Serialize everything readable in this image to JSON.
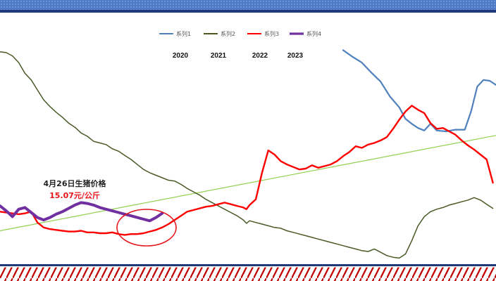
{
  "chart_data": {
    "type": "line",
    "title": "",
    "xlabel": "",
    "ylabel": "",
    "grid": false,
    "legend_position": "top-center",
    "x_scale": "weeks",
    "x_range": [
      0,
      159
    ],
    "y_range": [
      11,
      40
    ],
    "years": [
      "2020",
      "2021",
      "2022",
      "2023"
    ],
    "series": [
      {
        "name": "系列1",
        "color": "#4f81bd",
        "x": [
          110,
          113,
          116,
          119,
          122,
          125,
          128,
          130,
          132,
          134,
          136,
          138,
          140,
          143,
          146,
          149,
          151,
          153,
          155,
          157,
          159
        ],
        "values": [
          37.0,
          36.2,
          35.5,
          34.3,
          33.2,
          31.4,
          30.1,
          28.7,
          28.1,
          27.6,
          27.3,
          28.1,
          27.3,
          27.2,
          27.4,
          27.4,
          29.6,
          32.6,
          33.4,
          33.3,
          32.8
        ]
      },
      {
        "name": "系列2",
        "color": "#4a5a25",
        "x": [
          0,
          2,
          4,
          6,
          8,
          10,
          12,
          14,
          16,
          18,
          20,
          22,
          24,
          26,
          28,
          30,
          32,
          34,
          36,
          38,
          40,
          42,
          44,
          46,
          48,
          50,
          52,
          54,
          56,
          58,
          60,
          62,
          64,
          66,
          68,
          70,
          72,
          74,
          76,
          78,
          79,
          80,
          82,
          84,
          86,
          88,
          90,
          92,
          94,
          96,
          98,
          100,
          102,
          104,
          106,
          108,
          110,
          112,
          114,
          116,
          118,
          120,
          122,
          124,
          126,
          128,
          130,
          132,
          134,
          136,
          138,
          140,
          142,
          144,
          146,
          148,
          150,
          152,
          154,
          156,
          158
        ],
        "values": [
          36.8,
          36.7,
          36.3,
          35.5,
          34.2,
          33.4,
          32.2,
          31.0,
          30.2,
          29.5,
          28.9,
          28.2,
          27.7,
          27.0,
          26.6,
          26.0,
          25.8,
          25.6,
          25.1,
          24.8,
          24.3,
          23.8,
          23.2,
          22.6,
          22.2,
          21.9,
          21.6,
          21.3,
          21.2,
          20.8,
          20.3,
          19.9,
          19.5,
          19.0,
          18.6,
          18.2,
          17.8,
          17.4,
          17.0,
          16.5,
          16.1,
          16.4,
          16.2,
          16.0,
          15.8,
          15.6,
          15.5,
          15.2,
          15.0,
          14.8,
          14.6,
          14.4,
          14.2,
          14.0,
          13.8,
          13.6,
          13.4,
          13.2,
          13.0,
          12.8,
          12.7,
          13.0,
          12.6,
          12.2,
          12.0,
          11.9,
          12.4,
          14.0,
          15.8,
          16.9,
          17.5,
          17.8,
          18.0,
          18.3,
          18.5,
          18.7,
          18.9,
          19.2,
          18.9,
          18.4,
          17.9
        ]
      },
      {
        "name": "系列3",
        "color": "#ff0000",
        "x": [
          0,
          2,
          4,
          6,
          8,
          10,
          12,
          14,
          16,
          18,
          20,
          22,
          24,
          26,
          28,
          30,
          32,
          34,
          36,
          38,
          40,
          42,
          44,
          46,
          48,
          50,
          52,
          54,
          56,
          58,
          60,
          62,
          64,
          66,
          68,
          70,
          72,
          74,
          76,
          78,
          79,
          80,
          82,
          84,
          86,
          88,
          90,
          92,
          94,
          96,
          98,
          100,
          102,
          104,
          106,
          108,
          110,
          112,
          114,
          116,
          118,
          120,
          122,
          124,
          126,
          128,
          130,
          132,
          134,
          136,
          138,
          140,
          142,
          144,
          146,
          148,
          150,
          152,
          154,
          156,
          158
        ],
        "values": [
          17.5,
          17.4,
          17.3,
          17.2,
          17.3,
          17.5,
          16.2,
          15.6,
          15.4,
          15.3,
          15.2,
          15.1,
          15.1,
          15.2,
          15.0,
          15.0,
          14.9,
          14.9,
          15.0,
          14.8,
          14.7,
          14.8,
          14.8,
          14.9,
          15.1,
          15.3,
          15.6,
          16.0,
          16.5,
          17.0,
          17.5,
          17.7,
          17.9,
          18.1,
          18.2,
          18.4,
          18.6,
          18.4,
          18.2,
          18.0,
          17.8,
          18.3,
          19.0,
          22.2,
          24.9,
          24.4,
          23.6,
          23.2,
          22.9,
          22.6,
          22.7,
          23.1,
          22.8,
          23.0,
          23.2,
          23.6,
          24.2,
          24.7,
          25.4,
          25.2,
          25.6,
          25.8,
          26.1,
          26.5,
          27.5,
          28.6,
          29.6,
          30.3,
          29.8,
          29.4,
          28.2,
          27.5,
          27.6,
          27.2,
          26.8,
          26.1,
          25.5,
          25.0,
          24.4,
          23.8,
          21.0
        ]
      },
      {
        "name": "系列4",
        "color": "#7030a0",
        "x": [
          0,
          2,
          4,
          6,
          8,
          10,
          12,
          14,
          16,
          18,
          20,
          22,
          24,
          26,
          28,
          30,
          32,
          34,
          36,
          38,
          40,
          42,
          44,
          46,
          48,
          50,
          52
        ],
        "values": [
          18.2,
          17.6,
          16.9,
          17.8,
          18.0,
          17.4,
          16.8,
          16.5,
          16.8,
          17.2,
          17.5,
          17.9,
          18.3,
          18.6,
          18.5,
          18.3,
          18.0,
          17.8,
          17.6,
          17.4,
          17.2,
          17.0,
          16.8,
          16.6,
          16.4,
          16.8,
          17.3
        ]
      },
      {
        "name": "",
        "color": "#92d050",
        "x": [
          0,
          159
        ],
        "values": [
          15.2,
          26.7
        ]
      }
    ]
  },
  "legend": [
    {
      "label": "系列1",
      "color": "#4f81bd"
    },
    {
      "label": "系列2",
      "color": "#4a5a25"
    },
    {
      "label": "系列3",
      "color": "#ff0000"
    },
    {
      "label": "系列4",
      "color": "#7030a0"
    }
  ],
  "annotation": {
    "title": "4月26日生猪价格",
    "value": "15.07元/公斤",
    "highlight_color": "#e8121b"
  },
  "colors": {
    "border_navy": "#1f3a7a",
    "border_band": "#4e7ac7",
    "border_stripe": "#c00000"
  }
}
